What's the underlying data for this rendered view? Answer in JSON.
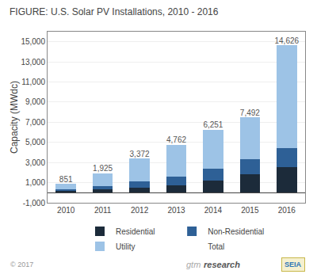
{
  "chart_data": {
    "type": "bar",
    "stacked": true,
    "title": "FIGURE: U.S. Solar PV Installations, 2010 - 2016",
    "ylabel": "Capacity (MWdc)",
    "categories": [
      "2010",
      "2011",
      "2012",
      "2013",
      "2014",
      "2015",
      "2016"
    ],
    "series": [
      {
        "name": "Residential",
        "color": "#1c2b3a",
        "values": [
          160,
          300,
          500,
          770,
          1200,
          1800,
          2510
        ]
      },
      {
        "name": "Non-Residential",
        "color": "#2e6096",
        "values": [
          200,
          350,
          600,
          850,
          1200,
          1500,
          1900
        ]
      },
      {
        "name": "Utility",
        "color": "#9dc3e6",
        "values": [
          491,
          1275,
          2272,
          3142,
          3851,
          4192,
          10216
        ]
      },
      {
        "name": "Total",
        "type": "text",
        "values": [
          851,
          1925,
          3372,
          4762,
          6251,
          7492,
          14626
        ],
        "value_labels": [
          "851",
          "1,925",
          "3,372",
          "4,762",
          "6,251",
          "7,492",
          "14,626"
        ]
      }
    ],
    "ylim": [
      -1000,
      16000
    ],
    "yticks": [
      {
        "value": -1000,
        "label": "-1,000"
      },
      {
        "value": 1000,
        "label": "1,000"
      },
      {
        "value": 3000,
        "label": "3,000"
      },
      {
        "value": 5000,
        "label": "5,000"
      },
      {
        "value": 7000,
        "label": "7,000"
      },
      {
        "value": 9000,
        "label": "9,000"
      },
      {
        "value": 11000,
        "label": "11,000"
      },
      {
        "value": 13000,
        "label": "13,000"
      },
      {
        "value": 15000,
        "label": "15,000"
      }
    ],
    "grid": true,
    "legend": "bottom",
    "annotations": [
      "© 2017",
      "gtm",
      "research",
      "SEIA"
    ]
  }
}
